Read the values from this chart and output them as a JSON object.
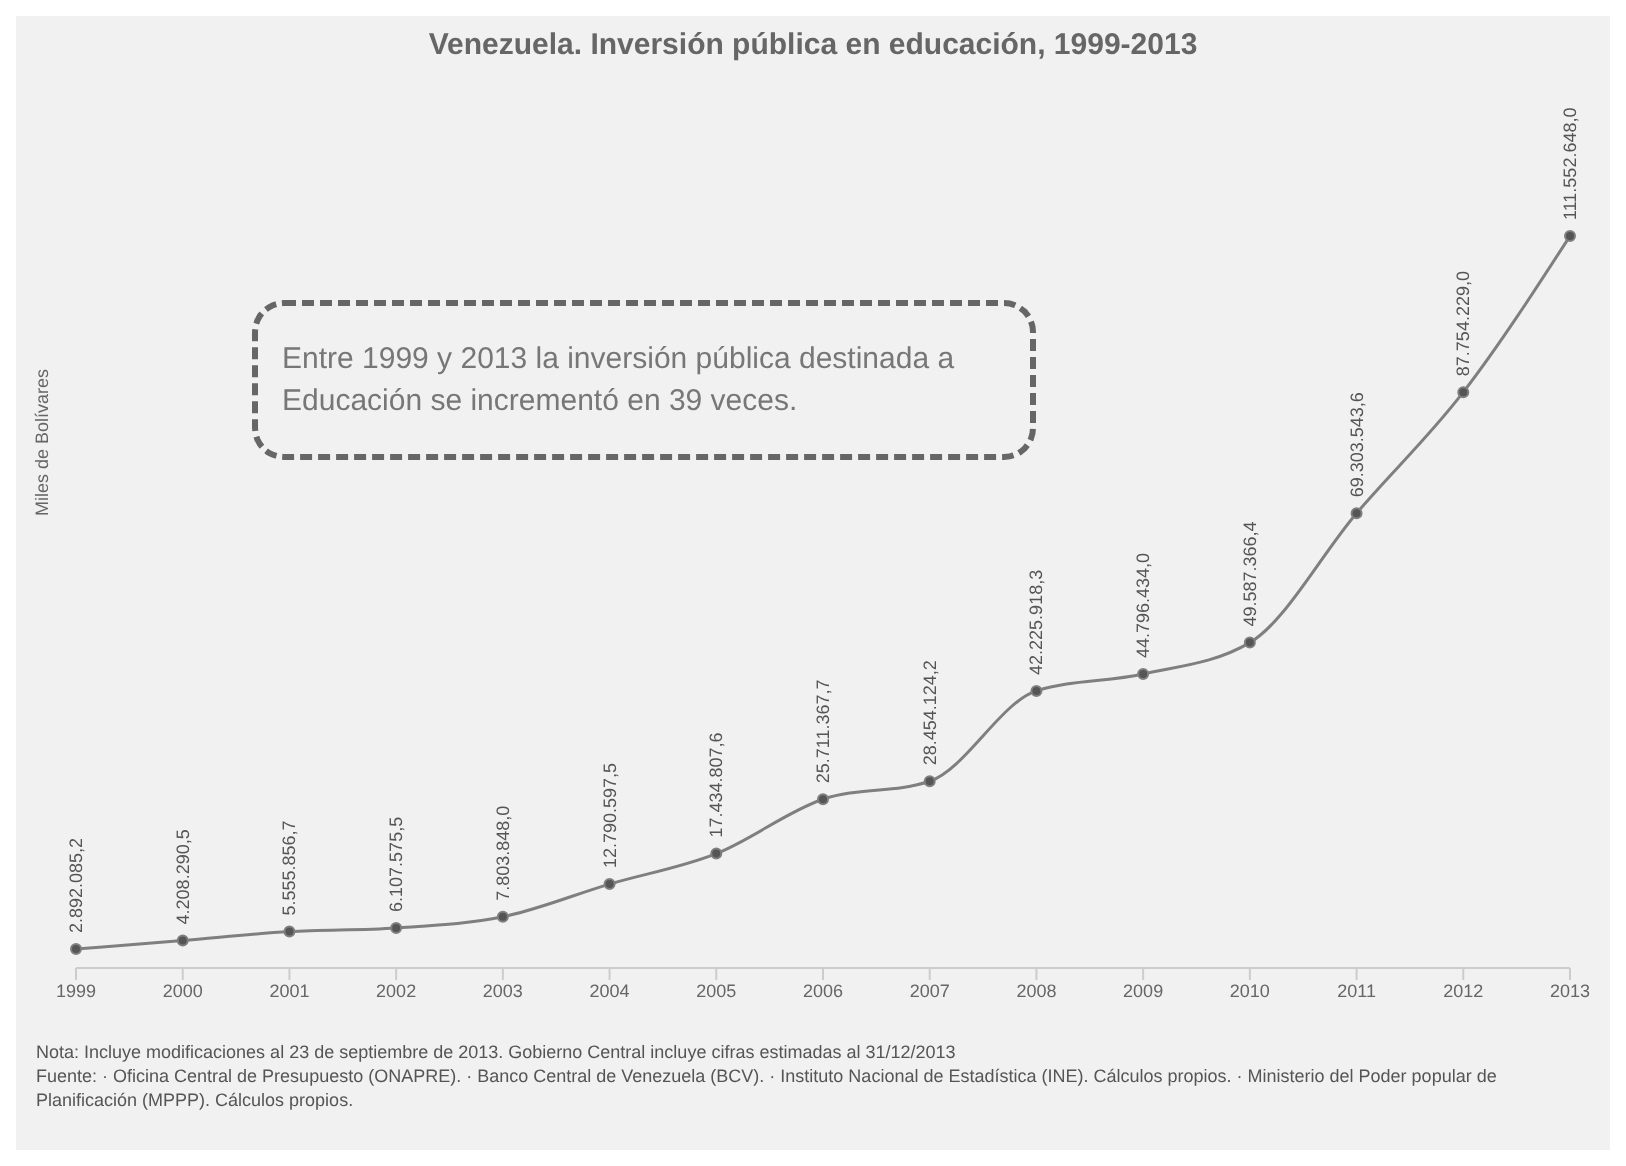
{
  "chart_data": {
    "type": "line",
    "title": "Venezuela. Inversión pública en educación, 1999-2013",
    "ylabel": "Miles de Bolívares",
    "categories": [
      "1999",
      "2000",
      "2001",
      "2002",
      "2003",
      "2004",
      "2005",
      "2006",
      "2007",
      "2008",
      "2009",
      "2010",
      "2011",
      "2012",
      "2013"
    ],
    "series": [
      {
        "color": "#7f7f7f",
        "values": [
          2892085.2,
          4208290.5,
          5555856.7,
          6107575.5,
          7803848.0,
          12790597.5,
          17434807.6,
          25711367.7,
          28454124.2,
          42225918.3,
          44796434.0,
          49587366.4,
          69303543.6,
          87754229.0,
          111552648.0
        ],
        "value_labels": [
          "2.892.085,2",
          "4.208.290,5",
          "5.555.856,7",
          "6.107.575,5",
          "7.803.848,0",
          "12.790.597,5",
          "17.434.807,6",
          "25.711.367,7",
          "28.454.124,2",
          "42.225.918,3",
          "44.796.434,0",
          "49.587.366,4",
          "69.303.543,6",
          "87.754.229,0",
          "111.552.648,0"
        ]
      }
    ],
    "marker": "circle",
    "grid": false,
    "legend": false,
    "annotations": [
      "Entre 1999 y 2013 la inversión pública destinada a Educación se incrementó en 39 veces.",
      "Nota: Incluye modificaciones al 23 de septiembre de 2013. Gobierno Central incluye cifras estimadas al 31/12/2013",
      "Fuente: · Oficina Central de Presupuesto (ONAPRE). · Banco Central de Venezuela (BCV). · Instituto Nacional de Estadística (INE). Cálculos propios. · Ministerio del Poder popular de Planificación (MPPP). Cálculos propios."
    ]
  }
}
